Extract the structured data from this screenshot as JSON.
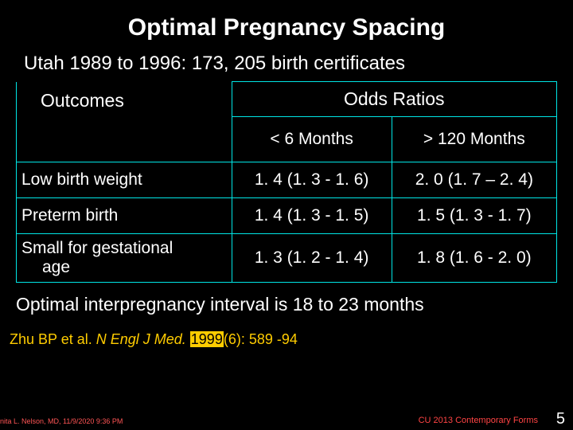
{
  "colors": {
    "background": "#000000",
    "text": "#ffffff",
    "table_border": "#00e6e6",
    "citation": "#ffcc00",
    "footer": "#ff4444"
  },
  "title": "Optimal Pregnancy Spacing",
  "subtitle": "Utah 1989 to 1996:   173, 205 birth certificates",
  "table": {
    "odds_ratios_label": "Odds Ratios",
    "outcomes_label": "Outcomes",
    "col1": "< 6 Months",
    "col2": "> 120 Months",
    "rows": [
      {
        "label": "Low birth weight",
        "v1": "1. 4 (1. 3 - 1. 6)",
        "v2": "2. 0 (1. 7 – 2. 4)"
      },
      {
        "label": "Preterm birth",
        "v1": "1. 4 (1. 3 - 1. 5)",
        "v2": "1. 5 (1. 3 - 1. 7)"
      },
      {
        "label_l1": "Small for gestational",
        "label_l2": "age",
        "v1": "1. 3 (1. 2 - 1. 4)",
        "v2": "1. 8 (1. 6 - 2. 0)"
      }
    ]
  },
  "optimal_line": "Optimal interpregnancy interval is 18 to 23  months",
  "citation": {
    "prefix": "Zhu BP et al. ",
    "journal": "N Engl J Med. ",
    "year_hl": "1999",
    "rest": "(6): 589 -94"
  },
  "footer_left": "nita L. Nelson, MD,  11/9/2020 9:36 PM",
  "footer_right": "CU 2013 Contemporary Forms",
  "page_number": "5"
}
